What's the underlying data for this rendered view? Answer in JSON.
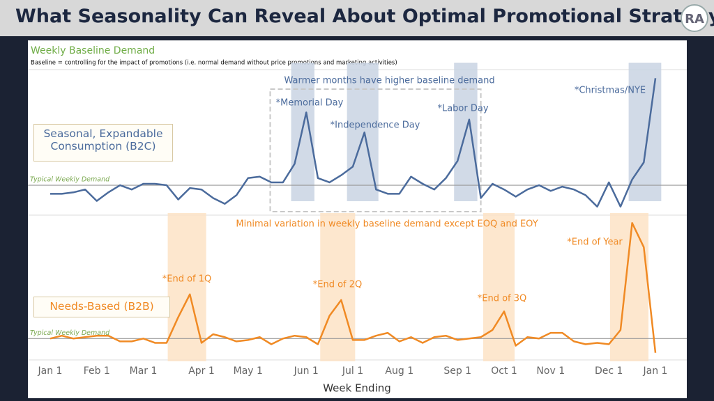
{
  "header": {
    "title": "What Seasonality Can Reveal About Optimal Promotional Strategy",
    "logo": "RA"
  },
  "chart_data": {
    "type": "line",
    "title": "Weekly Baseline Demand",
    "subtitle": "Baseline = controlling for the impact of promotions (i.e. normal demand without price promotions and marketing activities)",
    "x_label": "Week Ending",
    "categories": [
      "Jan 1",
      null,
      null,
      null,
      "Feb 1",
      null,
      null,
      null,
      "Mar 1",
      null,
      null,
      null,
      null,
      "Apr 1",
      null,
      null,
      null,
      "May 1",
      null,
      null,
      null,
      null,
      "Jun 1",
      null,
      null,
      null,
      "Jul 1",
      null,
      null,
      null,
      "Aug 1",
      null,
      null,
      null,
      null,
      "Sep 1",
      null,
      null,
      null,
      "Oct 1",
      null,
      null,
      null,
      "Nov 1",
      null,
      null,
      null,
      null,
      "Dec 1",
      null,
      null,
      null,
      "Jan 1"
    ],
    "series": [
      {
        "name": "Seasonal, Expandable Consumption (B2C)",
        "color": "#4b6b9c",
        "ylim": [
          0,
          100
        ],
        "values": [
          13,
          13,
          14,
          16,
          8,
          14,
          19,
          16,
          20,
          20,
          19,
          9,
          17,
          16,
          10,
          6,
          12,
          24,
          25,
          21,
          21,
          34,
          70,
          24,
          21,
          26,
          32,
          56,
          16,
          13,
          13,
          25,
          20,
          16,
          24,
          36,
          65,
          10,
          20,
          16,
          11,
          16,
          19,
          15,
          18,
          16,
          12,
          4,
          21,
          4,
          23,
          35,
          94
        ],
        "typical_value": 19,
        "typical_label": "Typical Weekly Demand",
        "note": {
          "label": "Warmer months have higher baseline demand",
          "from": 18.9,
          "to": 37
        },
        "highlights": [
          {
            "label": "*Memorial Day",
            "from": 20.7,
            "to": 22.7
          },
          {
            "label": "*Independence Day",
            "from": 25.5,
            "to": 28.2
          },
          {
            "label": "*Labor Day",
            "from": 34.7,
            "to": 36.7
          },
          {
            "label": "*Christmas/NYE",
            "from": 49.7,
            "to": 52.5
          }
        ]
      },
      {
        "name": "Needs-Based (B2B)",
        "color": "#f08a24",
        "ylim": [
          0,
          100
        ],
        "values": [
          14,
          16,
          14,
          15,
          16,
          16,
          12,
          12,
          14,
          11,
          11,
          29,
          45,
          11,
          17,
          15,
          12,
          13,
          15,
          10,
          14,
          16,
          15,
          10,
          30,
          41,
          13,
          13,
          16,
          18,
          12,
          15,
          11,
          15,
          16,
          13,
          14,
          15,
          20,
          33,
          9,
          15,
          14,
          18,
          18,
          12,
          10,
          11,
          10,
          20,
          95,
          78,
          4
        ],
        "typical_value": 14,
        "typical_label": "Typical Weekly Demand",
        "note": {
          "label": "Minimal variation in weekly baseline demand except EOQ and EOY"
        },
        "highlights": [
          {
            "label": "*End of 1Q",
            "from": 10.1,
            "to": 13.4
          },
          {
            "label": "*End of 2Q",
            "from": 23.2,
            "to": 26.2
          },
          {
            "label": "*End of 3Q",
            "from": 37.2,
            "to": 39.9
          },
          {
            "label": "*End of Year",
            "from": 48.1,
            "to": 51.4
          }
        ]
      }
    ]
  }
}
